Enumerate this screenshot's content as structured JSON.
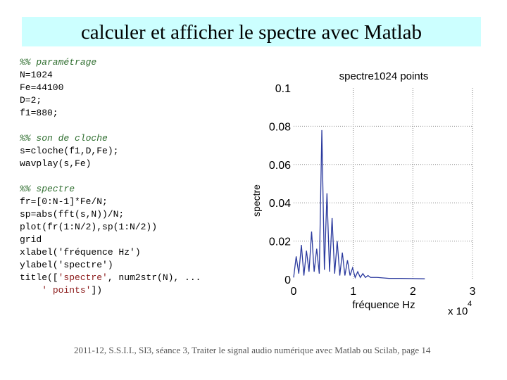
{
  "slide": {
    "title": "calculer et afficher le spectre avec Matlab",
    "footer": "2011-12, S.S.I.I., SI3, séance 3, Traiter le signal audio numérique avec Matlab ou Scilab, page 14"
  },
  "code": {
    "block1": {
      "comment": "%% paramétrage",
      "lines": [
        "N=1024",
        "Fe=44100",
        "D=2;",
        "f1=880;"
      ]
    },
    "block2": {
      "comment": "%% son de cloche",
      "lines": [
        "s=cloche(f1,D,Fe);",
        "wavplay(s,Fe)"
      ]
    },
    "block3": {
      "comment": "%% spectre",
      "lines": [
        "fr=[0:N-1]*Fe/N;",
        "sp=abs(fft(s,N))/N;",
        "plot(fr(1:N/2),sp(1:N/2))",
        "grid",
        "xlabel('fréquence Hz')",
        "ylabel('spectre')"
      ],
      "title_line": {
        "prefix": "title([",
        "str1": "'spectre'",
        "mid": ", num2str(N), ...",
        "indent": "    ",
        "str2": "' points'",
        "suffix": "])"
      }
    }
  },
  "chart_data": {
    "type": "line",
    "title": "spectre1024 points",
    "xlabel": "fréquence Hz",
    "ylabel": "spectre",
    "xlim": [
      0,
      30000
    ],
    "ylim": [
      0,
      0.1
    ],
    "x_ticks": [
      "0",
      "1",
      "2",
      "3"
    ],
    "y_ticks": [
      "0",
      "0.02",
      "0.04",
      "0.06",
      "0.08",
      "0.1"
    ],
    "x_multiplier": {
      "base": "x 10",
      "exponent": "4"
    },
    "grid": true,
    "series": [
      {
        "color": "#2b3a9e",
        "x": [
          0,
          430,
          860,
          1300,
          1720,
          2150,
          2580,
          3010,
          3440,
          3870,
          4300,
          4730,
          5160,
          5590,
          6020,
          6450,
          6880,
          7310,
          7740,
          8170,
          8600,
          9030,
          9460,
          9890,
          10320,
          10750,
          11180,
          11610,
          12040,
          12470,
          12900,
          14000,
          16000,
          18000,
          20000,
          22000
        ],
        "y": [
          0.001,
          0.012,
          0.003,
          0.018,
          0.002,
          0.015,
          0.004,
          0.025,
          0.004,
          0.016,
          0.003,
          0.078,
          0.005,
          0.045,
          0.004,
          0.032,
          0.003,
          0.02,
          0.002,
          0.014,
          0.002,
          0.01,
          0.002,
          0.006,
          0.001,
          0.004,
          0.001,
          0.003,
          0.001,
          0.002,
          0.001,
          0.001,
          0.0005,
          0.0005,
          0.0004,
          0.0003
        ]
      }
    ]
  }
}
